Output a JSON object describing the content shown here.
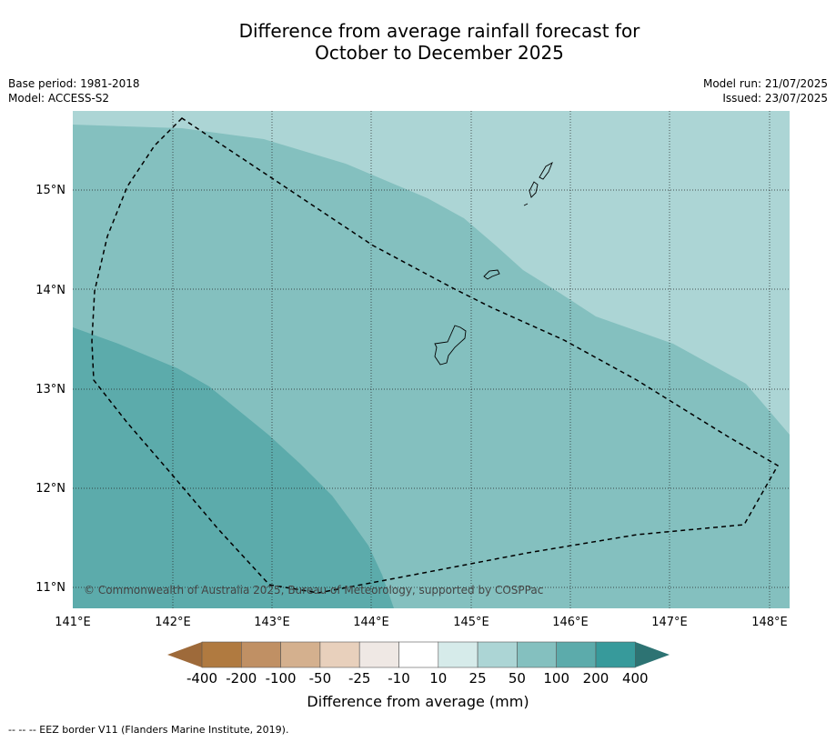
{
  "title_line1": "Difference from average rainfall forecast for",
  "title_line2": "October to December 2025",
  "meta_left": [
    "Base period: 1981-2018",
    "Model: ACCESS-S2"
  ],
  "meta_right": [
    "Model run: 21/07/2025",
    "Issued: 23/07/2025"
  ],
  "copyright": "© Commonwealth of Australia 2025, Bureau of Meteorology, supported by COSPPac",
  "axes": {
    "lon_labels": [
      "141°E",
      "142°E",
      "143°E",
      "144°E",
      "145°E",
      "146°E",
      "147°E",
      "148°E"
    ],
    "lat_labels": [
      "15°N",
      "14°N",
      "13°N",
      "12°N",
      "11°N"
    ]
  },
  "colorbar": {
    "title": "Difference from average (mm)",
    "tick_labels": [
      "-400",
      "-200",
      "-100",
      "-50",
      "-25",
      "-10",
      "10",
      "25",
      "50",
      "100",
      "200",
      "400"
    ],
    "colors": [
      "#9e6a3a",
      "#b07a40",
      "#c09064",
      "#d4b08e",
      "#e8d0bc",
      "#efe8e4",
      "#ffffff",
      "#d6ebea",
      "#acd5d5",
      "#84c0bf",
      "#5cabab",
      "#379a9b",
      "#2d7373"
    ]
  },
  "footnote": "--  --  -- EEZ border V11 (Flanders Marine Institute, 2019).",
  "map_colors": {
    "band_25_50": "#acd5d5",
    "band_50_100": "#84c0bf",
    "band_100_200": "#5cabab"
  }
}
